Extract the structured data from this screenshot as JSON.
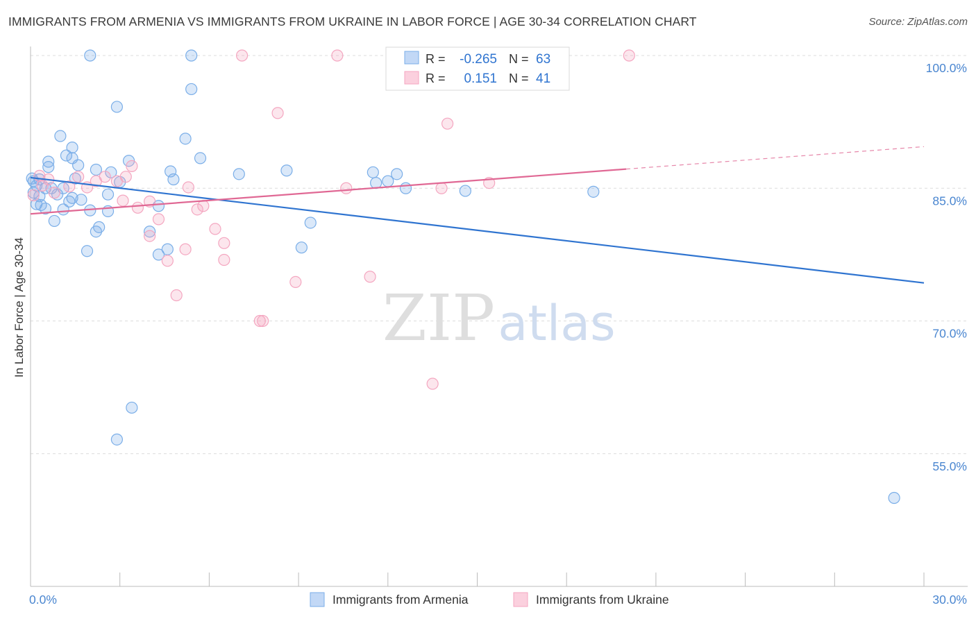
{
  "title": "IMMIGRANTS FROM ARMENIA VS IMMIGRANTS FROM UKRAINE IN LABOR FORCE | AGE 30-34 CORRELATION CHART",
  "source": "Source: ZipAtlas.com",
  "watermark": {
    "zip": "ZIP",
    "atlas": "atlas"
  },
  "legend_box": {
    "rows": [
      {
        "r_label": "R =",
        "r_value": "-0.265",
        "n_label": "N =",
        "n_value": "63"
      },
      {
        "r_label": "R =",
        "r_value": "0.151",
        "n_label": "N =",
        "n_value": "41"
      }
    ]
  },
  "chart_data": {
    "type": "scatter",
    "xlabel": "",
    "ylabel": "In Labor Force | Age 30-34",
    "xlim": [
      0,
      30
    ],
    "ylim": [
      40,
      100
    ],
    "x_tick_labels": [
      {
        "value": 0,
        "label": "0.0%"
      },
      {
        "value": 30,
        "label": "30.0%"
      }
    ],
    "y_tick_labels": [
      {
        "value": 100,
        "label": "100.0%"
      },
      {
        "value": 85,
        "label": "85.0%"
      },
      {
        "value": 70,
        "label": "70.0%"
      },
      {
        "value": 55,
        "label": "55.0%"
      }
    ],
    "grid": true,
    "legend_position": "bottom-center",
    "colors": {
      "armenia": "#7aaee8",
      "armenia_line": "#2f74d0",
      "ukraine": "#f4a6c0",
      "ukraine_line": "#e06894",
      "tick_label": "#4a86d0"
    },
    "series": [
      {
        "name": "Immigrants from Armenia",
        "R": -0.265,
        "N": 63,
        "trend": {
          "x": [
            0,
            30
          ],
          "y": [
            86.2,
            74.3
          ]
        },
        "points": [
          [
            2.0,
            100.0
          ],
          [
            5.4,
            100.0
          ],
          [
            5.4,
            96.2
          ],
          [
            2.9,
            94.2
          ],
          [
            1.0,
            90.9
          ],
          [
            5.2,
            90.6
          ],
          [
            1.4,
            89.6
          ],
          [
            1.2,
            88.7
          ],
          [
            1.4,
            88.4
          ],
          [
            5.7,
            88.4
          ],
          [
            3.3,
            88.1
          ],
          [
            0.6,
            88.0
          ],
          [
            0.6,
            87.4
          ],
          [
            1.6,
            87.6
          ],
          [
            2.2,
            87.1
          ],
          [
            2.7,
            86.8
          ],
          [
            4.7,
            86.9
          ],
          [
            7.0,
            86.6
          ],
          [
            8.6,
            87.0
          ],
          [
            11.5,
            86.8
          ],
          [
            12.3,
            86.6
          ],
          [
            11.6,
            85.6
          ],
          [
            12.0,
            85.8
          ],
          [
            0.05,
            86.1
          ],
          [
            0.3,
            86.0
          ],
          [
            1.5,
            86.1
          ],
          [
            4.8,
            86.0
          ],
          [
            0.2,
            85.3
          ],
          [
            0.5,
            85.0
          ],
          [
            0.7,
            85.0
          ],
          [
            1.1,
            85.0
          ],
          [
            12.6,
            85.0
          ],
          [
            14.6,
            84.7
          ],
          [
            18.9,
            84.6
          ],
          [
            2.6,
            84.3
          ],
          [
            0.3,
            84.1
          ],
          [
            1.4,
            83.9
          ],
          [
            1.7,
            83.7
          ],
          [
            1.3,
            83.5
          ],
          [
            0.2,
            83.2
          ],
          [
            0.35,
            83.1
          ],
          [
            4.3,
            83.0
          ],
          [
            0.5,
            82.7
          ],
          [
            1.1,
            82.6
          ],
          [
            2.0,
            82.5
          ],
          [
            2.6,
            82.4
          ],
          [
            0.8,
            81.3
          ],
          [
            9.4,
            81.1
          ],
          [
            2.3,
            80.6
          ],
          [
            2.2,
            80.1
          ],
          [
            4.0,
            80.1
          ],
          [
            9.1,
            78.3
          ],
          [
            1.9,
            77.9
          ],
          [
            4.6,
            78.1
          ],
          [
            4.3,
            77.5
          ],
          [
            3.4,
            60.2
          ],
          [
            2.9,
            56.6
          ],
          [
            29.0,
            50.0
          ],
          [
            13.0,
            100.0
          ],
          [
            0.1,
            84.5
          ],
          [
            0.1,
            85.8
          ],
          [
            3.0,
            85.7
          ],
          [
            0.9,
            84.3
          ]
        ]
      },
      {
        "name": "Immigrants from Ukraine",
        "R": 0.151,
        "N": 41,
        "trend": {
          "x": [
            0,
            30
          ],
          "y": [
            82.1,
            89.7
          ],
          "solid_until_x": 20
        },
        "points": [
          [
            7.1,
            100.0
          ],
          [
            10.3,
            100.0
          ],
          [
            16.3,
            100.0
          ],
          [
            20.1,
            100.0
          ],
          [
            8.3,
            93.5
          ],
          [
            14.0,
            92.3
          ],
          [
            3.4,
            87.5
          ],
          [
            0.3,
            86.4
          ],
          [
            1.6,
            86.3
          ],
          [
            2.5,
            86.3
          ],
          [
            3.2,
            86.3
          ],
          [
            0.6,
            86.0
          ],
          [
            2.2,
            85.8
          ],
          [
            2.9,
            85.8
          ],
          [
            0.4,
            85.3
          ],
          [
            1.3,
            85.2
          ],
          [
            1.9,
            85.1
          ],
          [
            5.3,
            85.1
          ],
          [
            10.6,
            85.0
          ],
          [
            13.8,
            85.0
          ],
          [
            15.4,
            85.6
          ],
          [
            0.8,
            84.5
          ],
          [
            3.1,
            83.6
          ],
          [
            4.0,
            83.5
          ],
          [
            5.8,
            83.0
          ],
          [
            3.6,
            82.8
          ],
          [
            5.6,
            82.6
          ],
          [
            4.3,
            81.5
          ],
          [
            6.2,
            80.4
          ],
          [
            4.0,
            79.6
          ],
          [
            6.5,
            78.8
          ],
          [
            5.2,
            78.1
          ],
          [
            6.5,
            76.9
          ],
          [
            4.6,
            76.8
          ],
          [
            11.4,
            75.0
          ],
          [
            8.9,
            74.4
          ],
          [
            4.9,
            72.9
          ],
          [
            7.7,
            70.0
          ],
          [
            7.8,
            70.0
          ],
          [
            13.5,
            62.9
          ],
          [
            0.1,
            84.2
          ]
        ]
      }
    ]
  },
  "legend": [
    {
      "label": "Immigrants from Armenia"
    },
    {
      "label": "Immigrants from Ukraine"
    }
  ]
}
